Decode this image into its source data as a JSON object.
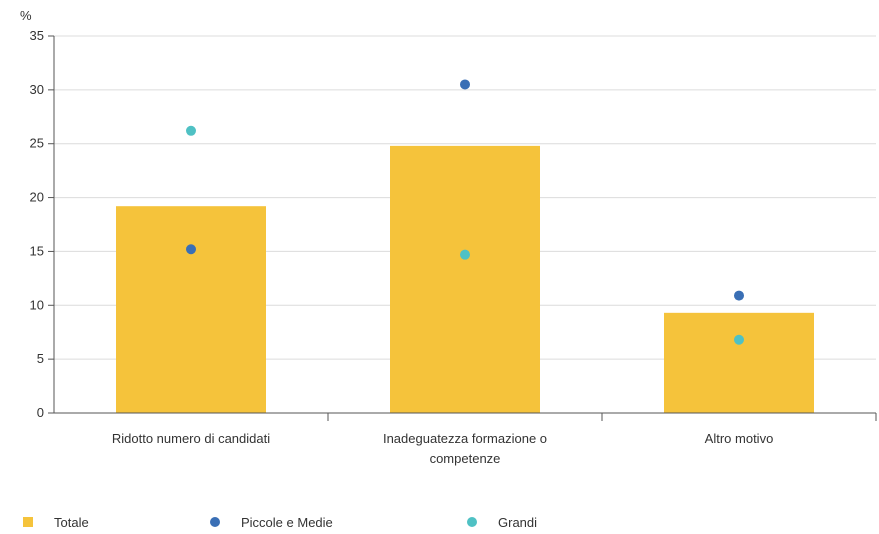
{
  "chart_data": {
    "type": "bar",
    "ylabel": "%",
    "ylim": [
      0,
      35
    ],
    "yticks": [
      0,
      5,
      10,
      15,
      20,
      25,
      30,
      35
    ],
    "grid": true,
    "legend_position": "bottom-left",
    "categories": [
      [
        "Ridotto numero di candidati"
      ],
      [
        "Inadeguatezza formazione o",
        "competenze"
      ],
      [
        "Altro motivo"
      ]
    ],
    "series": [
      {
        "name": "Totale",
        "kind": "bar",
        "color": "#f5c33b",
        "values": [
          19.2,
          24.8,
          9.3
        ]
      },
      {
        "name": "Piccole e Medie",
        "kind": "point",
        "color": "#3a6fb5",
        "values": [
          15.2,
          30.5,
          10.9
        ]
      },
      {
        "name": "Grandi",
        "kind": "point",
        "color": "#4fc1c4",
        "values": [
          26.2,
          14.7,
          6.8
        ]
      }
    ]
  }
}
